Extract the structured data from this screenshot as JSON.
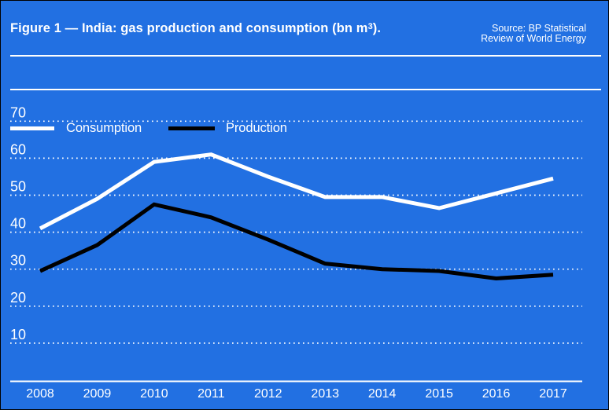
{
  "header": {
    "title_prefix": "Figure 1 — India: gas production and consumption (bn m",
    "title_sup": "3",
    "title_suffix": ").",
    "source_line1": "Source: BP Statistical",
    "source_line2": "Review of World Energy"
  },
  "legend": [
    {
      "label": "Consumption",
      "color": "#ffffff"
    },
    {
      "label": "Production",
      "color": "#000000"
    }
  ],
  "colors": {
    "background": "#2270E2",
    "text": "#ffffff",
    "gridline": "#ffffff",
    "axis_line": "#ffffff",
    "consumption_line": "#ffffff",
    "production_line": "#000000"
  },
  "chart_data": {
    "type": "line",
    "title": "Figure 1 — India: gas production and consumption (bn m3).",
    "source": "Source: BP Statistical Review of World Energy",
    "x": [
      2008,
      2009,
      2010,
      2011,
      2012,
      2013,
      2014,
      2015,
      2016,
      2017
    ],
    "series": [
      {
        "name": "Consumption",
        "color": "#ffffff",
        "values": [
          41,
          49,
          59,
          61,
          55,
          49.5,
          49.5,
          46.5,
          50.5,
          54.5
        ]
      },
      {
        "name": "Production",
        "color": "#000000",
        "values": [
          29.5,
          36.5,
          47.5,
          44,
          38,
          31.5,
          30,
          29.5,
          27.5,
          28.5
        ]
      }
    ],
    "xlabel": "",
    "ylabel": "bn m3",
    "y_ticks": [
      70,
      60,
      50,
      40,
      30,
      20,
      10
    ],
    "ylim": [
      0,
      77
    ],
    "grid": "dotted-horizontal",
    "legend_position": "top-left"
  }
}
